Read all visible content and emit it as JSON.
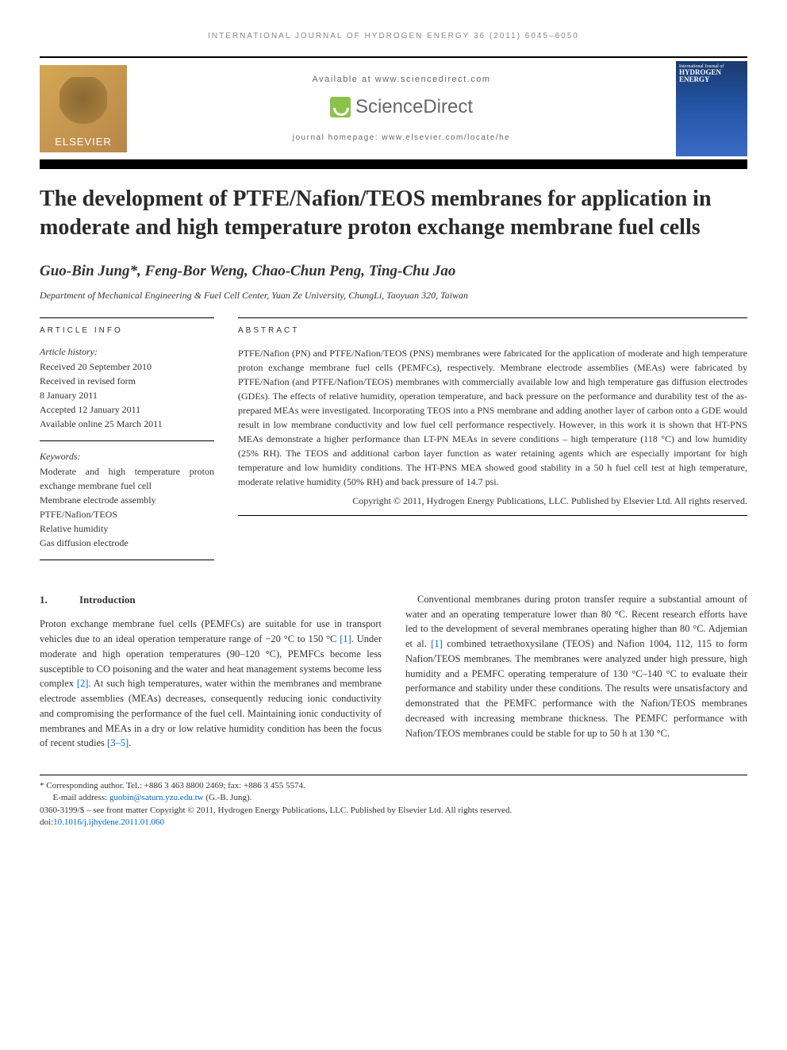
{
  "running_head": "INTERNATIONAL JOURNAL OF HYDROGEN ENERGY 36 (2011) 6045–6050",
  "header": {
    "elsevier": "ELSEVIER",
    "available": "Available at www.sciencedirect.com",
    "sciencedirect": "ScienceDirect",
    "homepage": "journal homepage: www.elsevier.com/locate/he",
    "cover_title": "HYDROGEN ENERGY",
    "cover_sub": "International Journal of"
  },
  "title": "The development of PTFE/Nafion/TEOS membranes for application in moderate and high temperature proton exchange membrane fuel cells",
  "authors": "Guo-Bin Jung*, Feng-Bor Weng, Chao-Chun Peng, Ting-Chu Jao",
  "affiliation": "Department of Mechanical Engineering & Fuel Cell Center, Yuan Ze University, ChungLi, Taoyuan 320, Taiwan",
  "info": {
    "heading": "ARTICLE INFO",
    "history_label": "Article history:",
    "history": [
      "Received 20 September 2010",
      "Received in revised form",
      "8 January 2011",
      "Accepted 12 January 2011",
      "Available online 25 March 2011"
    ],
    "keywords_label": "Keywords:",
    "keywords": [
      "Moderate and high temperature proton exchange membrane fuel cell",
      "Membrane electrode assembly",
      "PTFE/Nafion/TEOS",
      "Relative humidity",
      "Gas diffusion electrode"
    ]
  },
  "abstract": {
    "heading": "ABSTRACT",
    "text": "PTFE/Nafion (PN) and PTFE/Nafion/TEOS (PNS) membranes were fabricated for the application of moderate and high temperature proton exchange membrane fuel cells (PEMFCs), respectively. Membrane electrode assemblies (MEAs) were fabricated by PTFE/Nafion (and PTFE/Nafion/TEOS) membranes with commercially available low and high temperature gas diffusion electrodes (GDEs). The effects of relative humidity, operation temperature, and back pressure on the performance and durability test of the as-prepared MEAs were investigated. Incorporating TEOS into a PNS membrane and adding another layer of carbon onto a GDE would result in low membrane conductivity and low fuel cell performance respectively. However, in this work it is shown that HT-PNS MEAs demonstrate a higher performance than LT-PN MEAs in severe conditions – high temperature (118 °C) and low humidity (25% RH). The TEOS and additional carbon layer function as water retaining agents which are especially important for high temperature and low humidity conditions. The HT-PNS MEA showed good stability in a 50 h fuel cell test at high temperature, moderate relative humidity (50% RH) and back pressure of 14.7 psi.",
    "copyright": "Copyright © 2011, Hydrogen Energy Publications, LLC. Published by Elsevier Ltd. All rights reserved."
  },
  "section1": {
    "num": "1.",
    "title": "Introduction"
  },
  "body": {
    "col1_p1a": "Proton exchange membrane fuel cells (PEMFCs) are suitable for use in transport vehicles due to an ideal operation temperature range of −20 °C to 150 °C ",
    "ref1": "[1]",
    "col1_p1b": ". Under moderate and high operation temperatures (90–120 °C), PEMFCs become less susceptible to CO poisoning and the water and heat management systems become less complex ",
    "ref2": "[2]",
    "col1_p1c": ". At such high temperatures, water within the membranes and membrane electrode assemblies (MEAs) decreases, consequently reducing ionic conductivity and compromising the performance of the fuel cell. Maintaining ionic conductivity of membranes and MEAs in a dry or low relative humidity condition has been the focus of recent studies ",
    "ref3": "[3–5]",
    "col1_p1d": ".",
    "col2_p1a": "Conventional membranes during proton transfer require a substantial amount of water and an operating temperature lower than 80 °C. Recent research efforts have led to the development of several membranes operating higher than 80 °C. Adjemian et al. ",
    "ref1b": "[1]",
    "col2_p1b": " combined tetraethoxysilane (TEOS) and Nafion 1004, 112, 115 to form Nafion/TEOS membranes. The membranes were analyzed under high pressure, high humidity and a PEMFC operating temperature of 130 °C–140 °C to evaluate their performance and stability under these conditions. The results were unsatisfactory and demonstrated that the PEMFC performance with the Nafion/TEOS membranes decreased with increasing membrane thickness. The PEMFC performance with Nafion/TEOS membranes could be stable for up to 50 h at 130 °C."
  },
  "footnotes": {
    "corresponding": "* Corresponding author. Tel.: +886 3 463 8800 2469; fax: +886 3 455 5574.",
    "email_label": "E-mail address: ",
    "email": "guobin@saturn.yzu.edu.tw",
    "email_suffix": " (G.-B. Jung).",
    "issn": "0360-3199/$ – see front matter Copyright © 2011, Hydrogen Energy Publications, LLC. Published by Elsevier Ltd. All rights reserved.",
    "doi_label": "doi:",
    "doi": "10.1016/j.ijhydene.2011.01.060"
  },
  "colors": {
    "link": "#0066cc",
    "text": "#333333",
    "elsevier_bg": "#d4a854",
    "cover_bg": "#2456a8"
  }
}
